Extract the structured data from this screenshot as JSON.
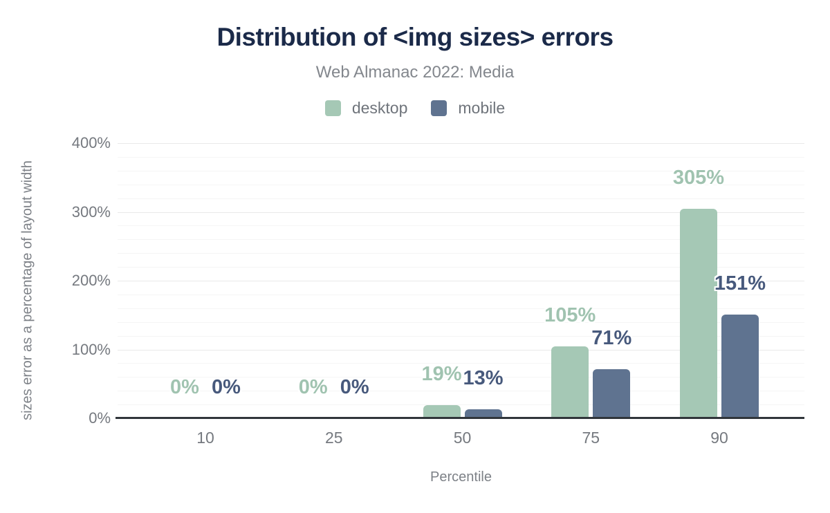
{
  "header": {
    "title": "Distribution of <img sizes> errors",
    "subtitle": "Web Almanac 2022: Media"
  },
  "legend": {
    "items": [
      {
        "label": "desktop",
        "color": "#a5c8b5"
      },
      {
        "label": "mobile",
        "color": "#5f7390"
      }
    ]
  },
  "chart_data": {
    "type": "bar",
    "title": "Distribution of <img sizes> errors",
    "subtitle": "Web Almanac 2022: Media",
    "categories": [
      "10",
      "25",
      "50",
      "75",
      "90"
    ],
    "series": [
      {
        "name": "desktop",
        "color": "#a5c8b5",
        "label_color": "#a0c3b0",
        "values": [
          0,
          0,
          19,
          105,
          305
        ],
        "labels": [
          "0%",
          "0%",
          "19%",
          "105%",
          "305%"
        ]
      },
      {
        "name": "mobile",
        "color": "#5f7390",
        "label_color": "#47597c",
        "values": [
          0,
          0,
          13,
          71,
          151
        ],
        "labels": [
          "0%",
          "0%",
          "13%",
          "71%",
          "151%"
        ]
      }
    ],
    "xlabel": "Percentile",
    "ylabel": "sizes error as a percentage of layout width",
    "ylim": [
      0,
      400
    ],
    "yticks": [
      0,
      100,
      200,
      300,
      400
    ],
    "ytick_labels": [
      "0%",
      "100%",
      "200%",
      "300%",
      "400%"
    ],
    "grid": {
      "major_step": 100,
      "minor_step": 20,
      "major_color": "#e9e9e9",
      "minor_color": "#f5f5f5"
    },
    "legend_position": "top",
    "baseline_color": "#30353a"
  },
  "colors": {
    "title": "#1b2a49",
    "subtitle": "#83878d",
    "axis_text": "#75797f"
  }
}
